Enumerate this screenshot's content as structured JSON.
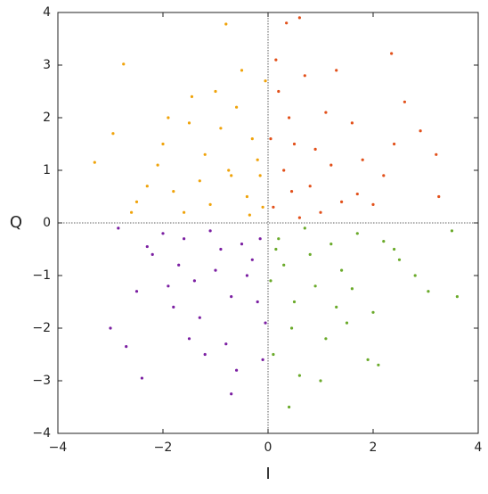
{
  "chart_data": {
    "type": "scatter",
    "x_label": "I",
    "y_label": "Q",
    "xlim": [
      -4,
      4
    ],
    "ylim": [
      -4,
      4
    ],
    "xticks": [
      {
        "value": -4,
        "label": "−4"
      },
      {
        "value": -2,
        "label": "−2"
      },
      0,
      2,
      4
    ],
    "yticks": [
      {
        "value": -4,
        "label": "−4"
      },
      {
        "value": -3,
        "label": "−3"
      },
      {
        "value": -2,
        "label": "−2"
      },
      {
        "value": -1,
        "label": "−1"
      },
      0,
      1,
      2,
      3,
      4
    ],
    "zero_lines": true,
    "series": [
      {
        "color": "#f0a30a",
        "x": [
          -3.3,
          -2.75,
          -0.8,
          -2.95,
          -2.5,
          -2.1,
          -1.8,
          -1.5,
          -1.2,
          -1.0,
          -0.7,
          -0.5,
          -0.3,
          -0.1,
          -1.6,
          -2.3,
          -0.9,
          -0.4,
          -1.3,
          -0.6,
          -2.0,
          -1.1,
          -0.2,
          -0.75,
          -1.45,
          -0.05,
          -2.6,
          -1.9,
          -0.35,
          -0.15
        ],
        "values": [
          1.15,
          3.02,
          3.78,
          1.7,
          0.4,
          1.1,
          0.6,
          1.9,
          1.3,
          2.5,
          0.9,
          2.9,
          1.6,
          0.3,
          0.2,
          0.7,
          1.8,
          0.5,
          0.8,
          2.2,
          1.5,
          0.35,
          1.2,
          1.0,
          2.4,
          2.7,
          0.2,
          2.0,
          0.15,
          0.9
        ]
      },
      {
        "color": "#e2501a",
        "x": [
          0.6,
          0.35,
          2.35,
          3.2,
          3.25,
          0.2,
          0.5,
          0.8,
          1.1,
          1.4,
          1.8,
          2.2,
          0.1,
          0.3,
          0.7,
          1.0,
          1.6,
          2.6,
          0.05,
          0.45,
          0.9,
          1.3,
          2.0,
          2.9,
          0.15,
          0.6,
          1.2,
          0.4,
          1.7,
          2.4
        ],
        "values": [
          3.9,
          3.8,
          3.22,
          1.3,
          0.5,
          2.5,
          1.5,
          0.7,
          2.1,
          0.4,
          1.2,
          0.9,
          0.3,
          1.0,
          2.8,
          0.2,
          1.9,
          2.3,
          1.6,
          0.6,
          1.4,
          2.9,
          0.35,
          1.75,
          3.1,
          0.1,
          1.1,
          2.0,
          0.55,
          1.5
        ]
      },
      {
        "color": "#7b1fa2",
        "x": [
          -2.7,
          -2.4,
          -0.7,
          -3.0,
          -2.85,
          -2.2,
          -1.9,
          -1.6,
          -1.3,
          -1.0,
          -0.8,
          -0.5,
          -0.2,
          -0.1,
          -1.5,
          -2.0,
          -1.1,
          -0.4,
          -0.6,
          -1.8,
          -0.9,
          -0.3,
          -1.4,
          -2.5,
          -0.15,
          -1.2,
          -0.05,
          -0.7,
          -1.7,
          -2.3
        ],
        "values": [
          -2.35,
          -2.95,
          -3.25,
          -2.0,
          -0.1,
          -0.6,
          -1.2,
          -0.3,
          -1.8,
          -0.9,
          -2.3,
          -0.4,
          -1.5,
          -2.6,
          -2.2,
          -0.2,
          -0.15,
          -1.0,
          -2.8,
          -1.6,
          -0.5,
          -0.7,
          -1.1,
          -1.3,
          -0.3,
          -2.5,
          -1.9,
          -1.4,
          -0.8,
          -0.45
        ]
      },
      {
        "color": "#6aaa2a",
        "x": [
          0.4,
          3.6,
          3.05,
          2.1,
          0.2,
          0.5,
          0.8,
          1.1,
          1.4,
          1.7,
          2.0,
          2.4,
          2.8,
          3.5,
          0.1,
          0.3,
          0.6,
          0.9,
          1.2,
          1.5,
          1.9,
          0.05,
          0.7,
          1.0,
          1.3,
          2.5,
          0.15,
          0.45,
          1.6,
          2.2
        ],
        "values": [
          -3.5,
          -1.4,
          -1.3,
          -2.7,
          -0.3,
          -1.5,
          -0.6,
          -2.2,
          -0.9,
          -0.2,
          -1.7,
          -0.5,
          -1.0,
          -0.15,
          -2.5,
          -0.8,
          -2.9,
          -1.2,
          -0.4,
          -1.9,
          -2.6,
          -1.1,
          -0.1,
          -3.0,
          -1.6,
          -0.7,
          -0.5,
          -2.0,
          -1.25,
          -0.35
        ]
      }
    ]
  }
}
